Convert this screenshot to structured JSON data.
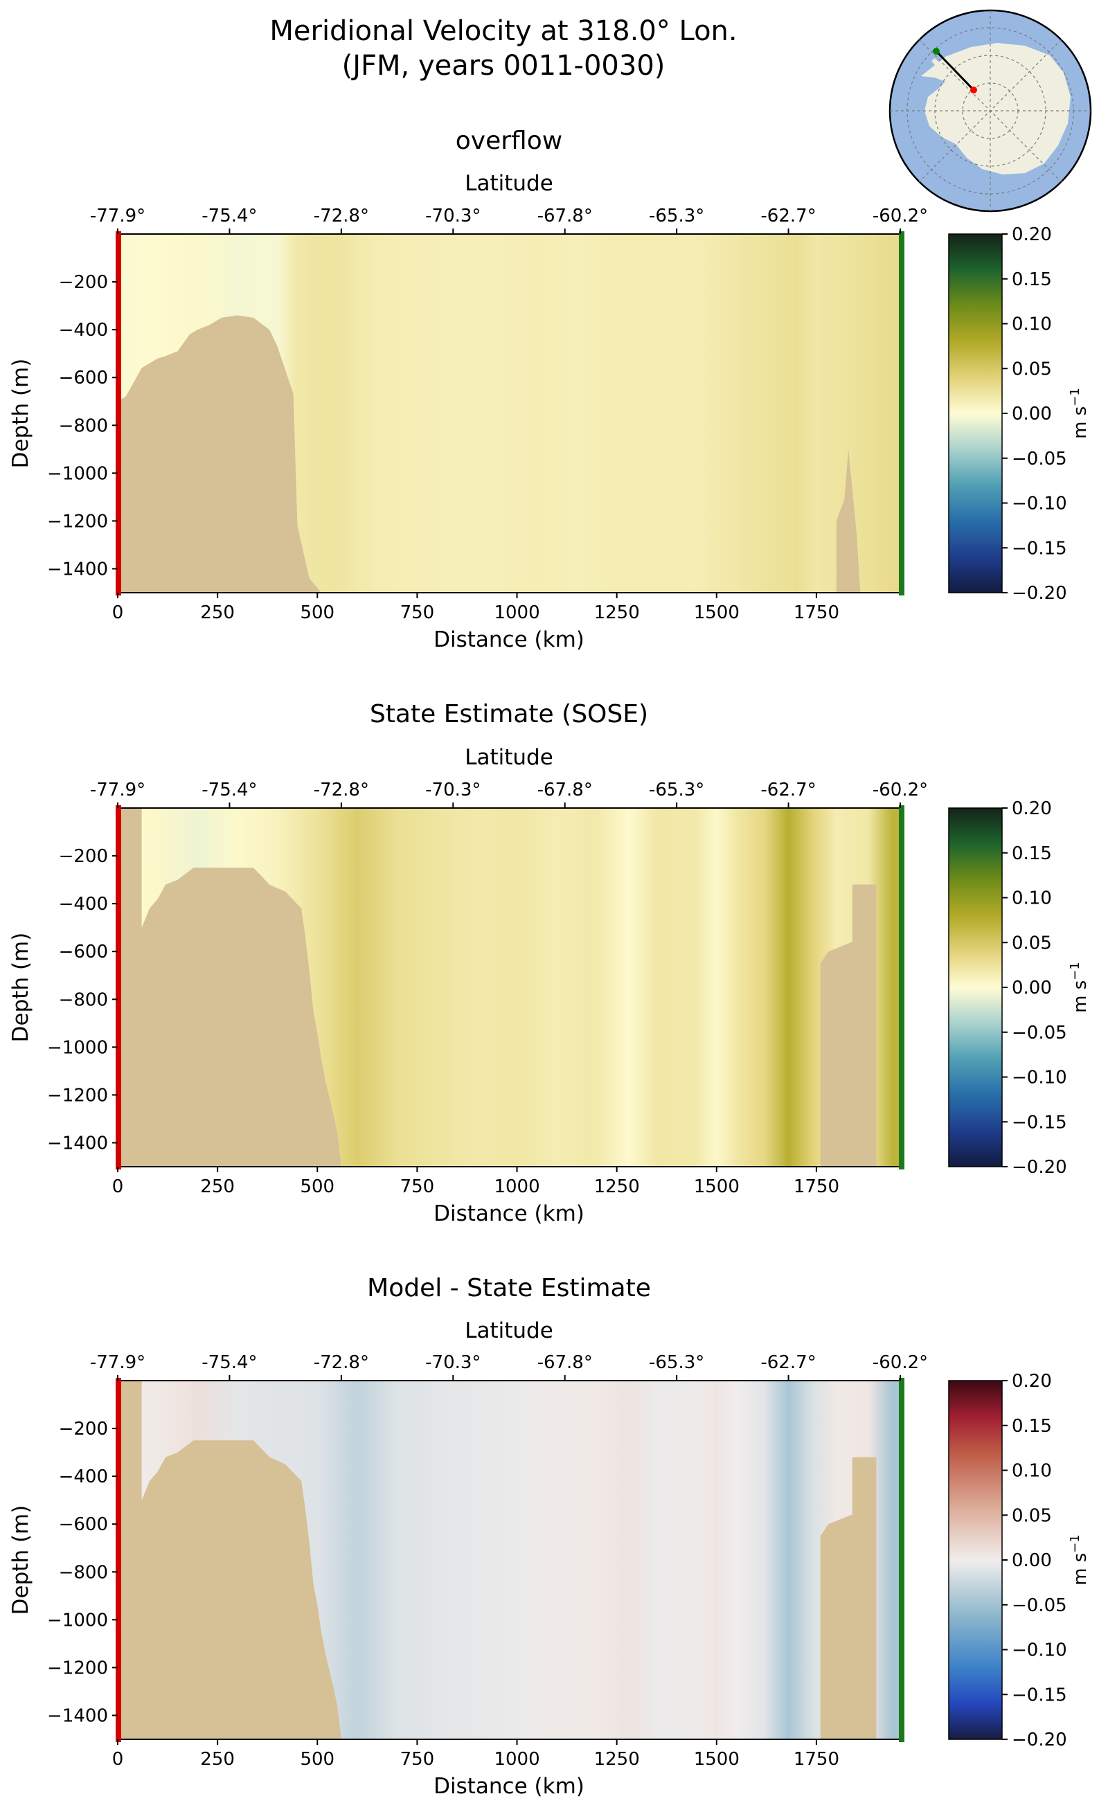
{
  "figure": {
    "title_line1": "Meridional Velocity at 318.0° Lon.",
    "title_line2": "(JFM, years 0011-0030)"
  },
  "inset_map": {
    "ocean_color": "#98b8e2",
    "land_color": "#f0efdf",
    "section_start_color": "#ff0000",
    "section_end_color": "#008000"
  },
  "colors": {
    "bathymetry": "#d6c096",
    "left_edge": "#d40000",
    "right_edge": "#1a7a1a"
  },
  "panels": [
    {
      "id": "overflow",
      "title": "overflow",
      "colormap": "delta",
      "cbar_ticks": [
        "0.20",
        "0.15",
        "0.10",
        "0.05",
        "0.00",
        "−0.05",
        "−0.10",
        "−0.15",
        "−0.20"
      ],
      "cbar_label": "m s",
      "cbar_label_sup": "−1",
      "bathy": [
        [
          0,
          700
        ],
        [
          20,
          680
        ],
        [
          40,
          620
        ],
        [
          60,
          560
        ],
        [
          100,
          520
        ],
        [
          120,
          510
        ],
        [
          150,
          490
        ],
        [
          180,
          420
        ],
        [
          200,
          400
        ],
        [
          230,
          380
        ],
        [
          260,
          350
        ],
        [
          300,
          340
        ],
        [
          340,
          350
        ],
        [
          380,
          400
        ],
        [
          400,
          470
        ],
        [
          440,
          670
        ],
        [
          450,
          1220
        ],
        [
          480,
          1440
        ],
        [
          510,
          1500
        ],
        [
          1800,
          1500
        ],
        [
          1800,
          1200
        ],
        [
          1820,
          1110
        ],
        [
          1830,
          900
        ],
        [
          1850,
          1240
        ],
        [
          1860,
          1500
        ]
      ],
      "velocity": [
        {
          "x": 0,
          "v": -0.003
        },
        {
          "x": 100,
          "v": 0.002
        },
        {
          "x": 200,
          "v": 0.004
        },
        {
          "x": 300,
          "v": -0.005
        },
        {
          "x": 400,
          "v": -0.004
        },
        {
          "x": 450,
          "v": 0.02
        },
        {
          "x": 550,
          "v": 0.022
        },
        {
          "x": 650,
          "v": 0.015
        },
        {
          "x": 750,
          "v": 0.013
        },
        {
          "x": 850,
          "v": 0.012
        },
        {
          "x": 950,
          "v": 0.012
        },
        {
          "x": 1050,
          "v": 0.014
        },
        {
          "x": 1150,
          "v": 0.012
        },
        {
          "x": 1250,
          "v": 0.015
        },
        {
          "x": 1350,
          "v": 0.015
        },
        {
          "x": 1450,
          "v": 0.014
        },
        {
          "x": 1550,
          "v": 0.02
        },
        {
          "x": 1650,
          "v": 0.025
        },
        {
          "x": 1700,
          "v": 0.028
        },
        {
          "x": 1750,
          "v": 0.02
        },
        {
          "x": 1800,
          "v": 0.022
        },
        {
          "x": 1850,
          "v": 0.025
        },
        {
          "x": 1900,
          "v": 0.028
        },
        {
          "x": 1960,
          "v": 0.032
        }
      ]
    },
    {
      "id": "sose",
      "title": "State Estimate (SOSE)",
      "colormap": "delta",
      "cbar_ticks": [
        "0.20",
        "0.15",
        "0.10",
        "0.05",
        "0.00",
        "−0.05",
        "−0.10",
        "−0.15",
        "−0.20"
      ],
      "cbar_label": "m s",
      "cbar_label_sup": "−1",
      "bathy": [
        [
          0,
          1500
        ],
        [
          0,
          0
        ],
        [
          60,
          0
        ],
        [
          60,
          500
        ],
        [
          80,
          420
        ],
        [
          100,
          380
        ],
        [
          120,
          320
        ],
        [
          150,
          300
        ],
        [
          190,
          250
        ],
        [
          340,
          250
        ],
        [
          380,
          320
        ],
        [
          420,
          350
        ],
        [
          460,
          420
        ],
        [
          470,
          540
        ],
        [
          480,
          680
        ],
        [
          490,
          850
        ],
        [
          500,
          940
        ],
        [
          510,
          1050
        ],
        [
          520,
          1140
        ],
        [
          540,
          1280
        ],
        [
          550,
          1360
        ],
        [
          560,
          1500
        ],
        [
          1760,
          1500
        ],
        [
          1760,
          650
        ],
        [
          1780,
          600
        ],
        [
          1840,
          560
        ],
        [
          1840,
          320
        ],
        [
          1900,
          320
        ],
        [
          1900,
          1500
        ]
      ],
      "velocity": [
        {
          "x": 0,
          "v": 0.0
        },
        {
          "x": 100,
          "v": 0.005
        },
        {
          "x": 200,
          "v": -0.008
        },
        {
          "x": 300,
          "v": 0.004
        },
        {
          "x": 400,
          "v": 0.01
        },
        {
          "x": 500,
          "v": 0.025
        },
        {
          "x": 600,
          "v": 0.045
        },
        {
          "x": 700,
          "v": 0.028
        },
        {
          "x": 800,
          "v": 0.022
        },
        {
          "x": 900,
          "v": 0.018
        },
        {
          "x": 1000,
          "v": 0.02
        },
        {
          "x": 1100,
          "v": 0.015
        },
        {
          "x": 1200,
          "v": 0.018
        },
        {
          "x": 1280,
          "v": 0.002
        },
        {
          "x": 1350,
          "v": 0.02
        },
        {
          "x": 1450,
          "v": 0.018
        },
        {
          "x": 1500,
          "v": 0.004
        },
        {
          "x": 1550,
          "v": 0.02
        },
        {
          "x": 1620,
          "v": 0.035
        },
        {
          "x": 1680,
          "v": 0.075
        },
        {
          "x": 1740,
          "v": 0.04
        },
        {
          "x": 1800,
          "v": 0.015
        },
        {
          "x": 1880,
          "v": 0.02
        },
        {
          "x": 1940,
          "v": 0.07
        }
      ]
    },
    {
      "id": "diff",
      "title": "Model - State Estimate",
      "colormap": "balance",
      "cbar_ticks": [
        "0.20",
        "0.15",
        "0.10",
        "0.05",
        "0.00",
        "−0.05",
        "−0.10",
        "−0.15",
        "−0.20"
      ],
      "cbar_label": "m s",
      "cbar_label_sup": "−1",
      "bathy": [
        [
          0,
          1500
        ],
        [
          0,
          0
        ],
        [
          60,
          0
        ],
        [
          60,
          500
        ],
        [
          80,
          420
        ],
        [
          100,
          380
        ],
        [
          120,
          320
        ],
        [
          150,
          300
        ],
        [
          190,
          250
        ],
        [
          340,
          250
        ],
        [
          380,
          320
        ],
        [
          420,
          350
        ],
        [
          460,
          420
        ],
        [
          470,
          540
        ],
        [
          480,
          680
        ],
        [
          490,
          850
        ],
        [
          500,
          940
        ],
        [
          510,
          1050
        ],
        [
          520,
          1140
        ],
        [
          540,
          1280
        ],
        [
          550,
          1360
        ],
        [
          560,
          1500
        ],
        [
          1760,
          1500
        ],
        [
          1760,
          650
        ],
        [
          1780,
          600
        ],
        [
          1840,
          560
        ],
        [
          1840,
          320
        ],
        [
          1900,
          320
        ],
        [
          1900,
          1500
        ]
      ],
      "velocity": [
        {
          "x": 0,
          "v": 0.0
        },
        {
          "x": 100,
          "v": 0.004
        },
        {
          "x": 200,
          "v": 0.012
        },
        {
          "x": 300,
          "v": -0.008
        },
        {
          "x": 400,
          "v": -0.01
        },
        {
          "x": 500,
          "v": -0.012
        },
        {
          "x": 600,
          "v": -0.03
        },
        {
          "x": 700,
          "v": -0.012
        },
        {
          "x": 800,
          "v": -0.008
        },
        {
          "x": 900,
          "v": -0.006
        },
        {
          "x": 1000,
          "v": -0.004
        },
        {
          "x": 1100,
          "v": 0.002
        },
        {
          "x": 1200,
          "v": 0.004
        },
        {
          "x": 1280,
          "v": 0.008
        },
        {
          "x": 1350,
          "v": -0.003
        },
        {
          "x": 1450,
          "v": -0.002
        },
        {
          "x": 1500,
          "v": 0.006
        },
        {
          "x": 1550,
          "v": 0.0
        },
        {
          "x": 1620,
          "v": -0.01
        },
        {
          "x": 1680,
          "v": -0.045
        },
        {
          "x": 1740,
          "v": -0.015
        },
        {
          "x": 1800,
          "v": 0.004
        },
        {
          "x": 1880,
          "v": 0.006
        },
        {
          "x": 1940,
          "v": -0.045
        }
      ]
    }
  ],
  "chart_data": [
    {
      "type": "heatmap",
      "title": "overflow",
      "xlabel": "Distance (km)",
      "ylabel": "Depth (m)",
      "top_xlabel": "Latitude",
      "xlim": [
        0,
        1960
      ],
      "ylim": [
        -1500,
        0
      ],
      "x_ticks": [
        "0",
        "250",
        "500",
        "750",
        "1000",
        "1250",
        "1500",
        "1750"
      ],
      "y_ticks": [
        "−200",
        "−400",
        "−600",
        "−800",
        "−1000",
        "−1200",
        "−1400"
      ],
      "lat_ticks": [
        "-77.9°",
        "-75.4°",
        "-72.8°",
        "-70.3°",
        "-67.8°",
        "-65.3°",
        "-62.7°",
        "-60.2°"
      ],
      "colorbar_range": [
        -0.2,
        0.2
      ],
      "colorbar_label": "m s⁻¹"
    },
    {
      "type": "heatmap",
      "title": "State Estimate (SOSE)",
      "xlabel": "Distance (km)",
      "ylabel": "Depth (m)",
      "top_xlabel": "Latitude",
      "xlim": [
        0,
        1960
      ],
      "ylim": [
        -1500,
        0
      ],
      "x_ticks": [
        "0",
        "250",
        "500",
        "750",
        "1000",
        "1250",
        "1500",
        "1750"
      ],
      "y_ticks": [
        "−200",
        "−400",
        "−600",
        "−800",
        "−1000",
        "−1200",
        "−1400"
      ],
      "lat_ticks": [
        "-77.9°",
        "-75.4°",
        "-72.8°",
        "-70.3°",
        "-67.8°",
        "-65.3°",
        "-62.7°",
        "-60.2°"
      ],
      "colorbar_range": [
        -0.2,
        0.2
      ],
      "colorbar_label": "m s⁻¹"
    },
    {
      "type": "heatmap",
      "title": "Model - State Estimate",
      "xlabel": "Distance (km)",
      "ylabel": "Depth (m)",
      "top_xlabel": "Latitude",
      "xlim": [
        0,
        1960
      ],
      "ylim": [
        -1500,
        0
      ],
      "x_ticks": [
        "0",
        "250",
        "500",
        "750",
        "1000",
        "1250",
        "1500",
        "1750"
      ],
      "y_ticks": [
        "−200",
        "−400",
        "−600",
        "−800",
        "−1000",
        "−1200",
        "−1400"
      ],
      "lat_ticks": [
        "-77.9°",
        "-75.4°",
        "-72.8°",
        "-70.3°",
        "-67.8°",
        "-65.3°",
        "-62.7°",
        "-60.2°"
      ],
      "colorbar_range": [
        -0.2,
        0.2
      ],
      "colorbar_label": "m s⁻¹"
    }
  ]
}
